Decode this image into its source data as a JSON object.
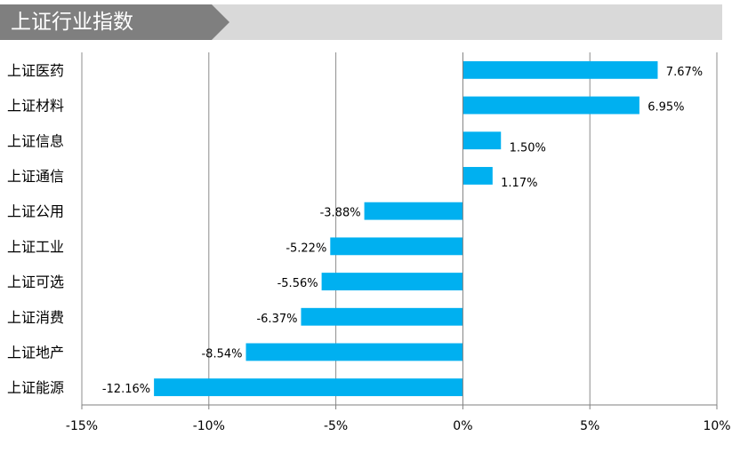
{
  "header": {
    "title": "上证行业指数"
  },
  "chart_data": {
    "type": "bar",
    "orientation": "horizontal",
    "title": "",
    "xlabel": "",
    "ylabel": "",
    "categories": [
      "上证医药",
      "上证材料",
      "上证信息",
      "上证通信",
      "上证公用",
      "上证工业",
      "上证可选",
      "上证消费",
      "上证地产",
      "上证能源"
    ],
    "values": [
      7.67,
      6.95,
      1.5,
      1.17,
      -3.88,
      -5.22,
      -5.56,
      -6.37,
      -8.54,
      -12.16
    ],
    "value_labels": [
      "7.67%",
      "6.95%",
      "1.50%",
      "1.17%",
      "-3.88%",
      "-5.22%",
      "-5.56%",
      "-6.37%",
      "-8.54%",
      "-12.16%"
    ],
    "xlim": [
      -15,
      10
    ],
    "ticks": [
      -15,
      -10,
      -5,
      0,
      5,
      10
    ],
    "tick_labels": [
      "-15%",
      "-10%",
      "-5%",
      "0%",
      "5%",
      "10%"
    ],
    "grid": true,
    "legend": "none",
    "bar_color": "#00b0f0"
  }
}
